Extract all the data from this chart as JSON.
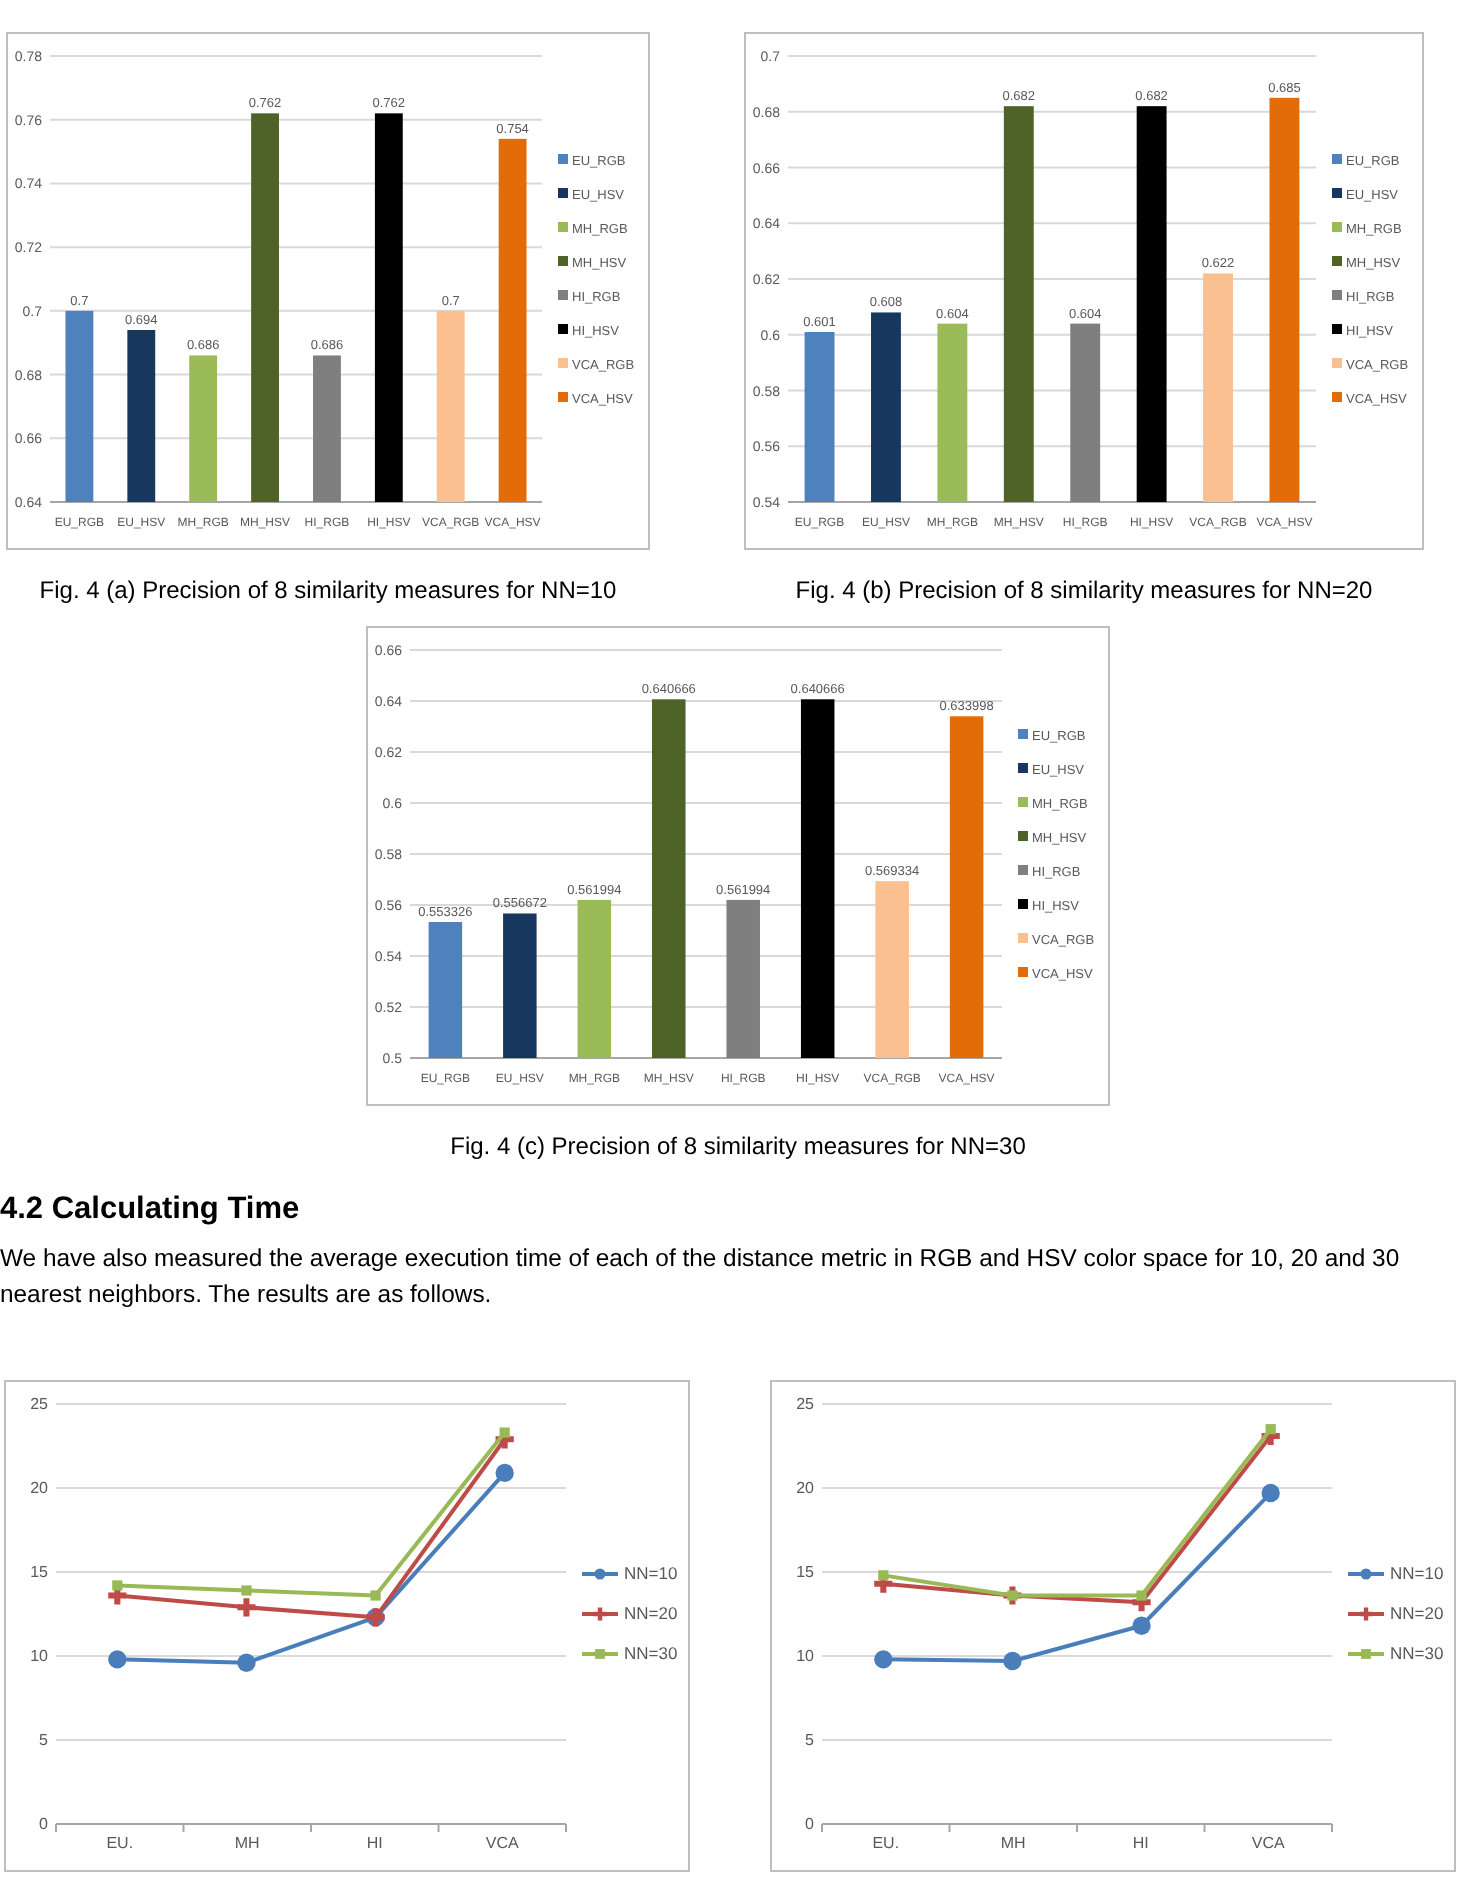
{
  "chart_data": [
    {
      "type": "bar",
      "title": "Fig. 4 (a) Precision of  8 similarity measures for NN=10",
      "categories": [
        "EU_RGB",
        "EU_HSV",
        "MH_RGB",
        "MH_HSV",
        "HI_RGB",
        "HI_HSV",
        "VCA_RGB",
        "VCA_HSV"
      ],
      "series": [
        {
          "name": "EU_RGB",
          "color": "#4f81bd",
          "values": [
            0.7,
            null,
            null,
            null,
            null,
            null,
            null,
            null
          ]
        },
        {
          "name": "EU_HSV",
          "color": "#17375e",
          "values": [
            null,
            0.694,
            null,
            null,
            null,
            null,
            null,
            null
          ]
        },
        {
          "name": "MH_RGB",
          "color": "#9bbb59",
          "values": [
            null,
            null,
            0.686,
            null,
            null,
            null,
            null,
            null
          ]
        },
        {
          "name": "MH_HSV",
          "color": "#4f6228",
          "values": [
            null,
            null,
            null,
            0.762,
            null,
            null,
            null,
            null
          ]
        },
        {
          "name": "HI_RGB",
          "color": "#7f7f7f",
          "values": [
            null,
            null,
            null,
            null,
            0.686,
            null,
            null,
            null
          ]
        },
        {
          "name": "HI_HSV",
          "color": "#000000",
          "values": [
            null,
            null,
            null,
            null,
            null,
            0.762,
            null,
            null
          ]
        },
        {
          "name": "VCA_RGB",
          "color": "#fac090",
          "values": [
            null,
            null,
            null,
            null,
            null,
            null,
            0.7,
            null
          ]
        },
        {
          "name": "VCA_HSV",
          "color": "#e36c09",
          "values": [
            null,
            null,
            null,
            null,
            null,
            null,
            null,
            0.754
          ]
        }
      ],
      "ylim": [
        0.64,
        0.78
      ],
      "yticks": [
        0.64,
        0.66,
        0.68,
        0.7,
        0.72,
        0.74,
        0.76,
        0.78
      ],
      "grid": "y",
      "legend": "right",
      "data_labels": true
    },
    {
      "type": "bar",
      "title": "Fig. 4 (b) Precision of  8 similarity measures for NN=20",
      "categories": [
        "EU_RGB",
        "EU_HSV",
        "MH_RGB",
        "MH_HSV",
        "HI_RGB",
        "HI_HSV",
        "VCA_RGB",
        "VCA_HSV"
      ],
      "series": [
        {
          "name": "EU_RGB",
          "color": "#4f81bd",
          "values": [
            0.601,
            null,
            null,
            null,
            null,
            null,
            null,
            null
          ]
        },
        {
          "name": "EU_HSV",
          "color": "#17375e",
          "values": [
            null,
            0.608,
            null,
            null,
            null,
            null,
            null,
            null
          ]
        },
        {
          "name": "MH_RGB",
          "color": "#9bbb59",
          "values": [
            null,
            null,
            0.604,
            null,
            null,
            null,
            null,
            null
          ]
        },
        {
          "name": "MH_HSV",
          "color": "#4f6228",
          "values": [
            null,
            null,
            null,
            0.682,
            null,
            null,
            null,
            null
          ]
        },
        {
          "name": "HI_RGB",
          "color": "#7f7f7f",
          "values": [
            null,
            null,
            null,
            null,
            0.604,
            null,
            null,
            null
          ]
        },
        {
          "name": "HI_HSV",
          "color": "#000000",
          "values": [
            null,
            null,
            null,
            null,
            null,
            0.682,
            null,
            null
          ]
        },
        {
          "name": "VCA_RGB",
          "color": "#fac090",
          "values": [
            null,
            null,
            null,
            null,
            null,
            null,
            0.622,
            null
          ]
        },
        {
          "name": "VCA_HSV",
          "color": "#e36c09",
          "values": [
            null,
            null,
            null,
            null,
            null,
            null,
            null,
            0.685
          ]
        }
      ],
      "ylim": [
        0.54,
        0.7
      ],
      "yticks": [
        0.54,
        0.56,
        0.58,
        0.6,
        0.62,
        0.64,
        0.66,
        0.68,
        0.7
      ],
      "grid": "y",
      "legend": "right",
      "data_labels": true
    },
    {
      "type": "bar",
      "title": "Fig. 4 (c) Precision of  8 similarity measures for NN=30",
      "categories": [
        "EU_RGB",
        "EU_HSV",
        "MH_RGB",
        "MH_HSV",
        "HI_RGB",
        "HI_HSV",
        "VCA_RGB",
        "VCA_HSV"
      ],
      "series": [
        {
          "name": "EU_RGB",
          "color": "#4f81bd",
          "values": [
            0.553326,
            null,
            null,
            null,
            null,
            null,
            null,
            null
          ]
        },
        {
          "name": "EU_HSV",
          "color": "#17375e",
          "values": [
            null,
            0.556672,
            null,
            null,
            null,
            null,
            null,
            null
          ]
        },
        {
          "name": "MH_RGB",
          "color": "#9bbb59",
          "values": [
            null,
            null,
            0.561994,
            null,
            null,
            null,
            null,
            null
          ]
        },
        {
          "name": "MH_HSV",
          "color": "#4f6228",
          "values": [
            null,
            null,
            null,
            0.640666,
            null,
            null,
            null,
            null
          ]
        },
        {
          "name": "HI_RGB",
          "color": "#7f7f7f",
          "values": [
            null,
            null,
            null,
            null,
            0.561994,
            null,
            null,
            null
          ]
        },
        {
          "name": "HI_HSV",
          "color": "#000000",
          "values": [
            null,
            null,
            null,
            null,
            null,
            0.640666,
            null,
            null
          ]
        },
        {
          "name": "VCA_RGB",
          "color": "#fac090",
          "values": [
            null,
            null,
            null,
            null,
            null,
            null,
            0.569334,
            null
          ]
        },
        {
          "name": "VCA_HSV",
          "color": "#e36c09",
          "values": [
            null,
            null,
            null,
            null,
            null,
            null,
            null,
            0.633998
          ]
        }
      ],
      "ylim": [
        0.5,
        0.66
      ],
      "yticks": [
        0.5,
        0.52,
        0.54,
        0.56,
        0.58,
        0.6,
        0.62,
        0.64,
        0.66
      ],
      "grid": "y",
      "legend": "right",
      "data_labels": true
    },
    {
      "type": "line",
      "annotations": [
        "4.2 Calculating Time",
        "We have also measured the average execution time of each of the distance metric in RGB and HSV color space for 10, 20 and 30 nearest neighbors. The results are as follows."
      ],
      "categories": [
        "EU.",
        "MH",
        "HI",
        "VCA"
      ],
      "series": [
        {
          "name": "NN=10",
          "color": "#4a7ebb",
          "marker": "circle",
          "values": [
            9.8,
            9.6,
            12.3,
            20.9
          ]
        },
        {
          "name": "NN=20",
          "color": "#be4b48",
          "marker": "cross",
          "values": [
            13.6,
            12.9,
            12.3,
            22.9
          ]
        },
        {
          "name": "NN=30",
          "color": "#98b954",
          "marker": "square",
          "values": [
            14.2,
            13.9,
            13.6,
            23.3
          ]
        }
      ],
      "ylim": [
        0,
        25
      ],
      "yticks": [
        0,
        5,
        10,
        15,
        20,
        25
      ],
      "grid": "y",
      "legend": "right",
      "line_style": "solid"
    },
    {
      "type": "line",
      "categories": [
        "EU.",
        "MH",
        "HI",
        "VCA"
      ],
      "series": [
        {
          "name": "NN=10",
          "color": "#4a7ebb",
          "marker": "circle",
          "values": [
            9.8,
            9.7,
            11.8,
            19.7
          ]
        },
        {
          "name": "NN=20",
          "color": "#be4b48",
          "marker": "cross",
          "values": [
            14.3,
            13.6,
            13.2,
            23.1
          ]
        },
        {
          "name": "NN=30",
          "color": "#98b954",
          "marker": "square",
          "values": [
            14.8,
            13.6,
            13.6,
            23.5
          ]
        }
      ],
      "ylim": [
        0,
        25
      ],
      "yticks": [
        0,
        5,
        10,
        15,
        20,
        25
      ],
      "grid": "y",
      "legend": "right",
      "line_style": "solid"
    }
  ]
}
